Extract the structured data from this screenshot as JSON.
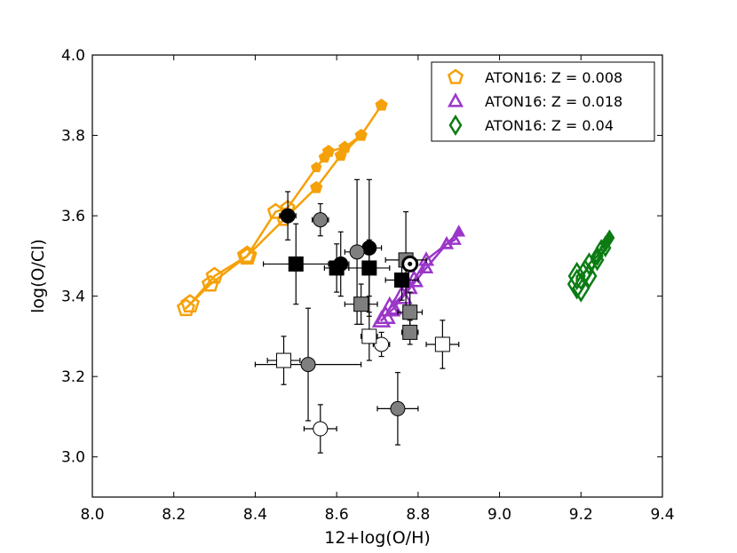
{
  "chart_data": {
    "type": "scatter",
    "title": "",
    "xlabel": "12+log(O/H)",
    "ylabel": "log(O/Cl)",
    "xlim": [
      8.0,
      9.4
    ],
    "ylim": [
      2.9,
      4.0
    ],
    "xticks": [
      "8.0",
      "8.2",
      "8.4",
      "8.6",
      "8.8",
      "9.0",
      "9.2",
      "9.4"
    ],
    "yticks": [
      "3.0",
      "3.2",
      "3.4",
      "3.6",
      "3.8",
      "4.0"
    ],
    "grid": false,
    "legend_position": "top-right",
    "legend": [
      {
        "label": "ATON16: Z = 0.008",
        "color": "#f5a10a",
        "marker": "pentagon"
      },
      {
        "label": "ATON16: Z = 0.018",
        "color": "#9b36c9",
        "marker": "triangle"
      },
      {
        "label": "ATON16: Z = 0.04",
        "color": "#0b7c12",
        "marker": "diamond"
      }
    ],
    "model_tracks": [
      {
        "name": "ATON16: Z = 0.008",
        "color": "#f5a10a",
        "marker": "pentagon",
        "x": [
          8.71,
          8.66,
          8.62,
          8.58,
          8.57,
          8.55,
          8.48,
          8.45,
          8.38,
          8.3,
          8.24,
          8.23,
          8.29,
          8.38,
          8.47,
          8.55,
          8.61,
          8.66,
          8.71
        ],
        "y": [
          3.875,
          3.8,
          3.77,
          3.76,
          3.745,
          3.72,
          3.62,
          3.61,
          3.5,
          3.45,
          3.38,
          3.37,
          3.43,
          3.5,
          3.59,
          3.67,
          3.75,
          3.8,
          3.875
        ],
        "sizes": [
          0.3,
          0.3,
          0.3,
          0.3,
          0.25,
          0.2,
          0.45,
          0.55,
          0.75,
          0.6,
          0.7,
          0.65,
          0.6,
          0.5,
          0.4,
          0.3,
          0.28,
          0.25,
          0.25
        ]
      },
      {
        "name": "ATON16: Z = 0.018",
        "color": "#9b36c9",
        "marker": "triangle",
        "x": [
          8.9,
          8.89,
          8.87,
          8.82,
          8.79,
          8.76,
          8.73,
          8.72,
          8.71,
          8.74,
          8.78,
          8.82,
          8.87,
          8.9
        ],
        "y": [
          3.56,
          3.54,
          3.53,
          3.49,
          3.44,
          3.4,
          3.37,
          3.35,
          3.34,
          3.37,
          3.42,
          3.47,
          3.53,
          3.56
        ],
        "sizes": [
          0.3,
          0.35,
          0.4,
          0.5,
          0.7,
          0.85,
          0.9,
          0.8,
          0.7,
          0.6,
          0.5,
          0.4,
          0.35,
          0.3
        ]
      },
      {
        "name": "ATON16: Z = 0.04",
        "color": "#0b7c12",
        "marker": "diamond",
        "x": [
          9.27,
          9.26,
          9.25,
          9.24,
          9.22,
          9.21,
          9.19,
          9.19,
          9.2,
          9.22,
          9.24,
          9.26,
          9.27
        ],
        "y": [
          3.545,
          3.53,
          3.52,
          3.5,
          3.48,
          3.46,
          3.45,
          3.43,
          3.42,
          3.45,
          3.49,
          3.52,
          3.545
        ],
        "sizes": [
          0.25,
          0.3,
          0.35,
          0.45,
          0.6,
          0.75,
          0.85,
          0.95,
          0.85,
          0.7,
          0.55,
          0.4,
          0.3
        ]
      }
    ],
    "observations": [
      {
        "marker": "circle",
        "fill": "#000000",
        "x": 8.48,
        "y": 3.6,
        "xerr": 0.02,
        "yerr": 0.06
      },
      {
        "marker": "circle",
        "fill": "#7f7f7f",
        "x": 8.56,
        "y": 3.59,
        "xerr": 0.02,
        "yerr": 0.04
      },
      {
        "marker": "circle",
        "fill": "#000000",
        "x": 8.68,
        "y": 3.52,
        "xerr": 0.03,
        "yerr": 0.17
      },
      {
        "marker": "circle",
        "fill": "#7f7f7f",
        "x": 8.65,
        "y": 3.51,
        "xerr": 0.03,
        "yerr": 0.18
      },
      {
        "marker": "circle",
        "fill": "#000000",
        "x": 8.61,
        "y": 3.48,
        "xerr": 0.02,
        "yerr": 0.08
      },
      {
        "marker": "circle",
        "fill": "#7f7f7f",
        "x": 8.53,
        "y": 3.23,
        "xerr": 0.13,
        "yerr": 0.14
      },
      {
        "marker": "circle",
        "fill": "#7f7f7f",
        "x": 8.75,
        "y": 3.12,
        "xerr": 0.05,
        "yerr": 0.09
      },
      {
        "marker": "circle",
        "fill": "#ffffff",
        "x": 8.71,
        "y": 3.28,
        "xerr": 0.02,
        "yerr": 0.03
      },
      {
        "marker": "circle",
        "fill": "#ffffff",
        "x": 8.56,
        "y": 3.07,
        "xerr": 0.04,
        "yerr": 0.06
      },
      {
        "marker": "square",
        "fill": "#000000",
        "x": 8.5,
        "y": 3.48,
        "xerr": 0.08,
        "yerr": 0.1
      },
      {
        "marker": "square",
        "fill": "#000000",
        "x": 8.6,
        "y": 3.47,
        "xerr": 0.03,
        "yerr": 0.06
      },
      {
        "marker": "square",
        "fill": "#000000",
        "x": 8.68,
        "y": 3.47,
        "xerr": 0.05,
        "yerr": 0.07
      },
      {
        "marker": "square",
        "fill": "#000000",
        "x": 8.76,
        "y": 3.44,
        "xerr": 0.04,
        "yerr": 0.05
      },
      {
        "marker": "square",
        "fill": "#7f7f7f",
        "x": 8.77,
        "y": 3.49,
        "xerr": 0.05,
        "yerr": 0.12
      },
      {
        "marker": "square",
        "fill": "#7f7f7f",
        "x": 8.66,
        "y": 3.38,
        "xerr": 0.04,
        "yerr": 0.05
      },
      {
        "marker": "square",
        "fill": "#7f7f7f",
        "x": 8.78,
        "y": 3.36,
        "xerr": 0.03,
        "yerr": 0.05
      },
      {
        "marker": "square",
        "fill": "#7f7f7f",
        "x": 8.78,
        "y": 3.31,
        "xerr": 0.02,
        "yerr": 0.03
      },
      {
        "marker": "square",
        "fill": "#ffffff",
        "x": 8.68,
        "y": 3.3,
        "xerr": 0.02,
        "yerr": 0.06
      },
      {
        "marker": "square",
        "fill": "#ffffff",
        "x": 8.86,
        "y": 3.28,
        "xerr": 0.04,
        "yerr": 0.06
      },
      {
        "marker": "square",
        "fill": "#ffffff",
        "x": 8.47,
        "y": 3.24,
        "xerr": 0.04,
        "yerr": 0.06
      },
      {
        "marker": "sun",
        "fill": "#000000",
        "x": 8.78,
        "y": 3.48,
        "xerr": 0.0,
        "yerr": 0.0
      }
    ]
  }
}
